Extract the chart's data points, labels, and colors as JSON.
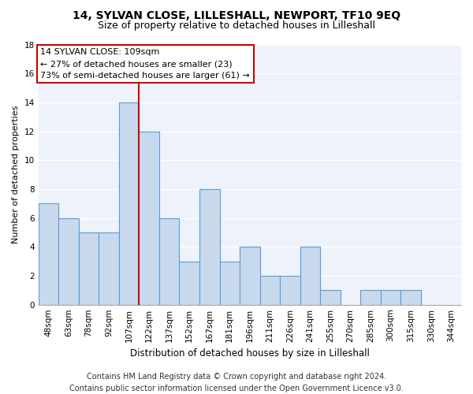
{
  "title": "14, SYLVAN CLOSE, LILLESHALL, NEWPORT, TF10 9EQ",
  "subtitle": "Size of property relative to detached houses in Lilleshall",
  "xlabel": "Distribution of detached houses by size in Lilleshall",
  "ylabel": "Number of detached properties",
  "bar_color": "#c8d9ee",
  "bar_edgecolor": "#5b9bd5",
  "background_color": "#edf2fb",
  "grid_color": "#ffffff",
  "categories": [
    "48sqm",
    "63sqm",
    "78sqm",
    "92sqm",
    "107sqm",
    "122sqm",
    "137sqm",
    "152sqm",
    "167sqm",
    "181sqm",
    "196sqm",
    "211sqm",
    "226sqm",
    "241sqm",
    "255sqm",
    "270sqm",
    "285sqm",
    "300sqm",
    "315sqm",
    "330sqm",
    "344sqm"
  ],
  "values": [
    7,
    6,
    5,
    5,
    14,
    12,
    6,
    3,
    8,
    3,
    4,
    2,
    2,
    4,
    1,
    0,
    1,
    1,
    1,
    0,
    0
  ],
  "ylim": [
    0,
    18
  ],
  "yticks": [
    0,
    2,
    4,
    6,
    8,
    10,
    12,
    14,
    16,
    18
  ],
  "vline_index": 5,
  "annotation_text": "14 SYLVAN CLOSE: 109sqm\n← 27% of detached houses are smaller (23)\n73% of semi-detached houses are larger (61) →",
  "annotation_box_color": "white",
  "annotation_box_edgecolor": "#cc0000",
  "vline_color": "#cc0000",
  "footer_line1": "Contains HM Land Registry data © Crown copyright and database right 2024.",
  "footer_line2": "Contains public sector information licensed under the Open Government Licence v3.0.",
  "title_fontsize": 10,
  "subtitle_fontsize": 9,
  "xlabel_fontsize": 8.5,
  "ylabel_fontsize": 8,
  "tick_fontsize": 7.5,
  "annotation_fontsize": 8,
  "footer_fontsize": 7
}
